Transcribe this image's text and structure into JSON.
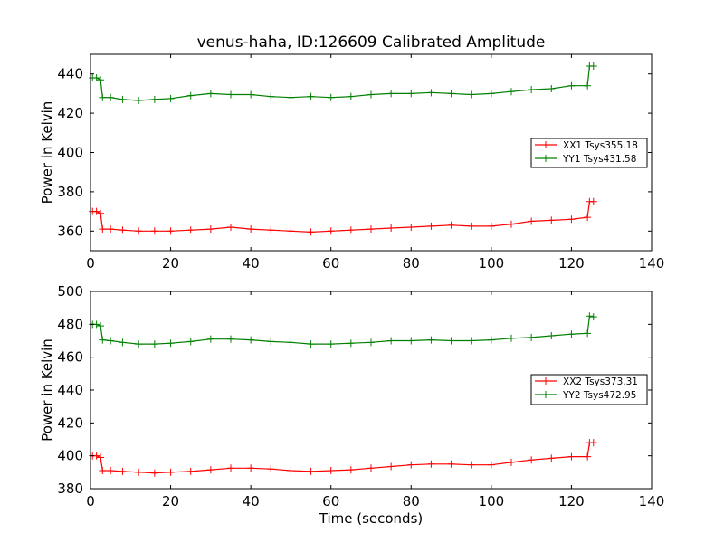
{
  "chart_data": [
    {
      "type": "line",
      "title": "venus-haha, ID:126609 Calibrated Amplitude",
      "xlabel": "",
      "ylabel": "Power in Kelvin",
      "xlim": [
        0,
        140
      ],
      "ylim": [
        350,
        450
      ],
      "xticks": [
        0,
        20,
        40,
        60,
        80,
        100,
        120,
        140
      ],
      "yticks": [
        360,
        380,
        400,
        420,
        440
      ],
      "grid": false,
      "legend_position": "right",
      "marker": "plus",
      "series": [
        {
          "name": "XX1 Tsys355.18",
          "color": "#ff0000",
          "x": [
            0.5,
            1.5,
            2.5,
            3,
            5,
            8,
            12,
            16,
            20,
            25,
            30,
            35,
            40,
            45,
            50,
            55,
            60,
            65,
            70,
            75,
            80,
            85,
            90,
            95,
            100,
            105,
            110,
            115,
            120,
            124,
            124.5,
            125.5
          ],
          "y": [
            370,
            370,
            369,
            361,
            361,
            360.5,
            360,
            360,
            360,
            360.5,
            361,
            362,
            361,
            360.5,
            360,
            359.5,
            360,
            360.5,
            361,
            361.5,
            362,
            362.5,
            363,
            362.5,
            362.5,
            363.5,
            365,
            365.5,
            366,
            367,
            375,
            375
          ]
        },
        {
          "name": "YY1 Tsys431.58",
          "color": "#008000",
          "x": [
            0.5,
            1.5,
            2.5,
            3,
            5,
            8,
            12,
            16,
            20,
            25,
            30,
            35,
            40,
            45,
            50,
            55,
            60,
            65,
            70,
            75,
            80,
            85,
            90,
            95,
            100,
            105,
            110,
            115,
            120,
            124,
            124.5,
            125.5
          ],
          "y": [
            438,
            438,
            437,
            428,
            428,
            427,
            426.5,
            427,
            427.5,
            429,
            430,
            429.5,
            429.5,
            428.5,
            428,
            428.5,
            428,
            428.5,
            429.5,
            430,
            430,
            430.5,
            430,
            429.5,
            430,
            431,
            432,
            432.5,
            434,
            434,
            444,
            444
          ]
        }
      ]
    },
    {
      "type": "line",
      "title": "",
      "xlabel": "Time (seconds)",
      "ylabel": "Power in Kelvin",
      "xlim": [
        0,
        140
      ],
      "ylim": [
        380,
        500
      ],
      "xticks": [
        0,
        20,
        40,
        60,
        80,
        100,
        120,
        140
      ],
      "yticks": [
        380,
        400,
        420,
        440,
        460,
        480,
        500
      ],
      "grid": false,
      "legend_position": "right",
      "marker": "plus",
      "series": [
        {
          "name": "XX2 Tsys373.31",
          "color": "#ff0000",
          "x": [
            0.5,
            1.5,
            2.5,
            3,
            5,
            8,
            12,
            16,
            20,
            25,
            30,
            35,
            40,
            45,
            50,
            55,
            60,
            65,
            70,
            75,
            80,
            85,
            90,
            95,
            100,
            105,
            110,
            115,
            120,
            124,
            124.5,
            125.5
          ],
          "y": [
            400,
            400,
            399,
            391,
            391,
            390.5,
            390,
            389.5,
            390,
            390.5,
            391.5,
            392.5,
            392.5,
            392,
            391,
            390.5,
            391,
            391.5,
            392.5,
            393.5,
            394.5,
            395,
            395,
            394.5,
            394.5,
            396,
            397.5,
            398.5,
            399.5,
            399.5,
            408,
            408
          ]
        },
        {
          "name": "YY2 Tsys472.95",
          "color": "#008000",
          "x": [
            0.5,
            1.5,
            2.5,
            3,
            5,
            8,
            12,
            16,
            20,
            25,
            30,
            35,
            40,
            45,
            50,
            55,
            60,
            65,
            70,
            75,
            80,
            85,
            90,
            95,
            100,
            105,
            110,
            115,
            120,
            124,
            124.5,
            125.5
          ],
          "y": [
            480,
            480,
            479,
            470.5,
            470,
            469,
            468,
            468,
            468.5,
            469.5,
            471,
            471,
            470.5,
            469.5,
            469,
            468,
            468,
            468.5,
            469,
            470,
            470,
            470.5,
            470,
            470,
            470.5,
            471.5,
            472,
            473,
            474,
            474.5,
            485,
            484.5
          ]
        }
      ]
    }
  ]
}
